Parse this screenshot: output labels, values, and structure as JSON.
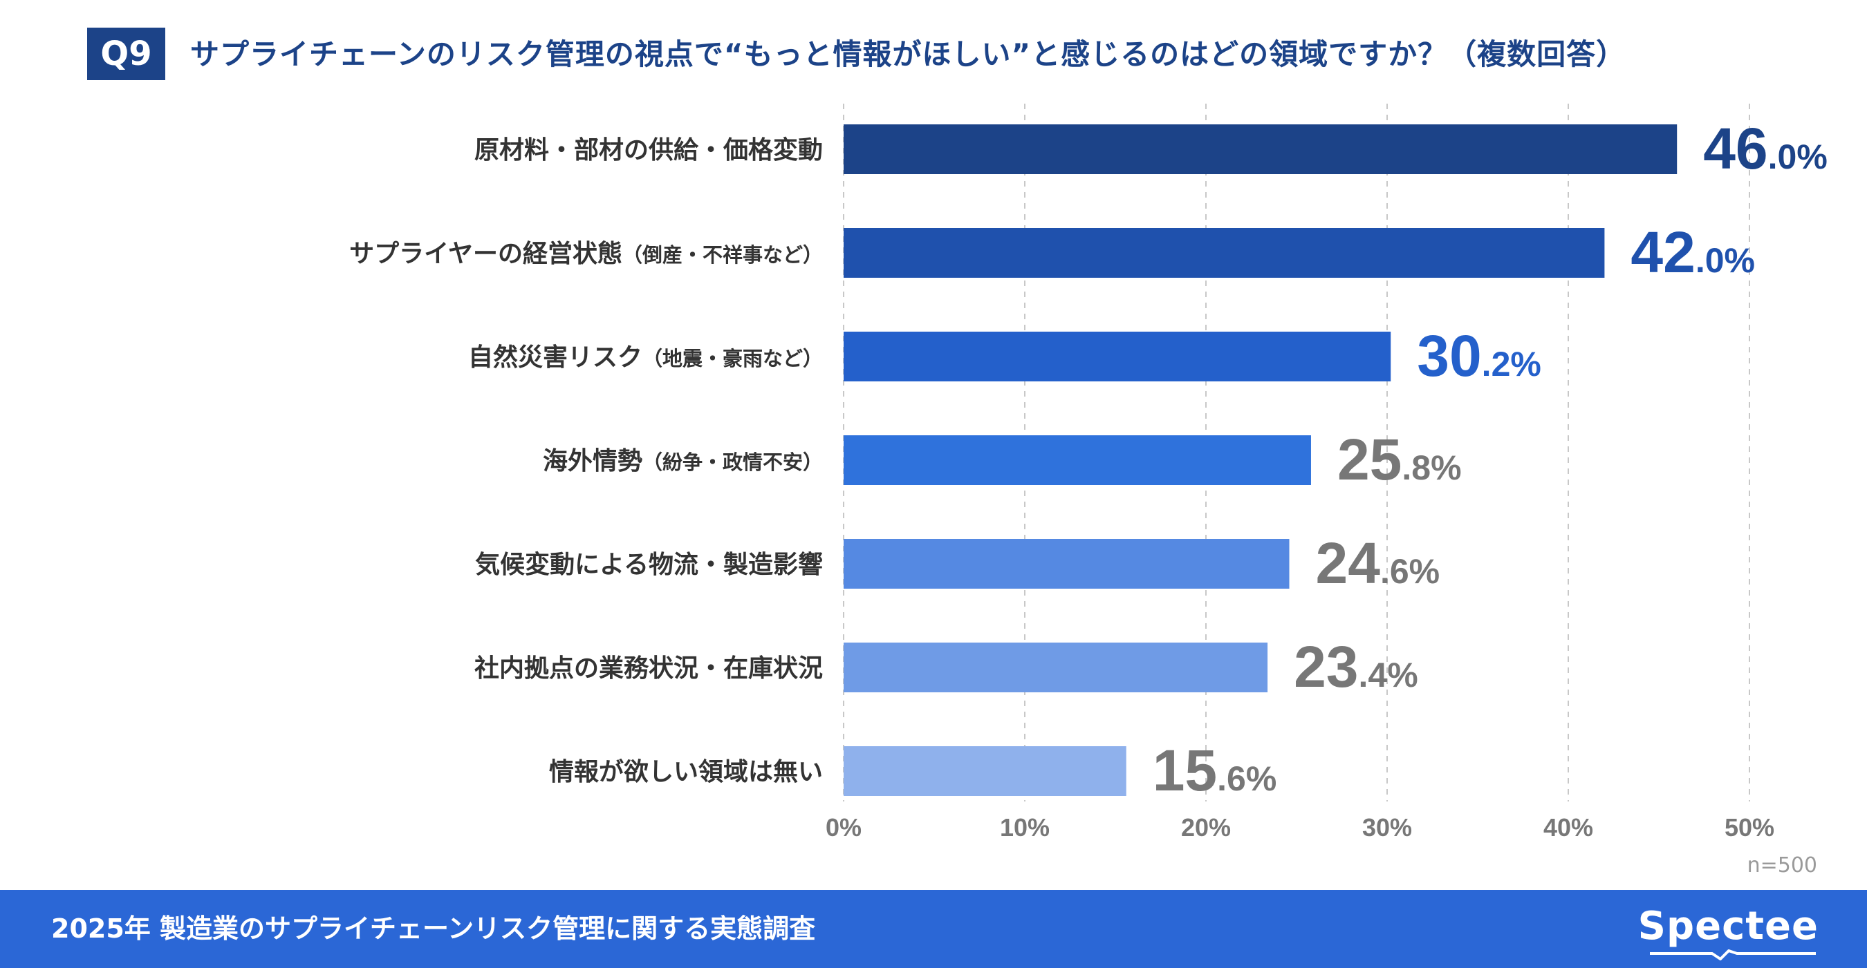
{
  "header": {
    "badge": "Q9",
    "question": "サプライチェーンのリスク管理の視点で“もっと情報がほしい”と感じるのはどの領域ですか？（複数回答）"
  },
  "chart_data": {
    "type": "bar",
    "orientation": "horizontal",
    "categories": [
      {
        "main": "原材料・部材の供給・価格変動",
        "note": ""
      },
      {
        "main": "サプライヤーの経営状態",
        "note": "（倒産・不祥事など）"
      },
      {
        "main": "自然災害リスク",
        "note": "（地震・豪雨など）"
      },
      {
        "main": "海外情勢",
        "note": "（紛争・政情不安）"
      },
      {
        "main": "気候変動による物流・製造影響",
        "note": ""
      },
      {
        "main": "社内拠点の業務状況・在庫状況",
        "note": ""
      },
      {
        "main": "情報が欲しい領域は無い",
        "note": ""
      }
    ],
    "values": [
      46.0,
      42.0,
      30.2,
      25.8,
      24.6,
      23.4,
      15.6
    ],
    "value_labels": [
      {
        "int": "46",
        "dec": ".0%"
      },
      {
        "int": "42",
        "dec": ".0%"
      },
      {
        "int": "30",
        "dec": ".2%"
      },
      {
        "int": "25",
        "dec": ".8%"
      },
      {
        "int": "24",
        "dec": ".6%"
      },
      {
        "int": "23",
        "dec": ".4%"
      },
      {
        "int": "15",
        "dec": ".6%"
      }
    ],
    "bar_colors": [
      "#1c4388",
      "#1f51ad",
      "#2460cb",
      "#2f72dc",
      "#5589e2",
      "#6f9be6",
      "#8fb1ec"
    ],
    "label_colors": [
      "#1c4388",
      "#1f51ad",
      "#2460cb",
      "#777777",
      "#777777",
      "#777777",
      "#777777"
    ],
    "xlim": [
      0,
      50
    ],
    "xticks": [
      0,
      10,
      20,
      30,
      40,
      50
    ],
    "xtick_labels": [
      "0%",
      "10%",
      "20%",
      "30%",
      "40%",
      "50%"
    ],
    "grid": true,
    "grid_style": "dashed"
  },
  "sample": "n=500",
  "footer": {
    "title": "2025年 製造業のサプライチェーンリスク管理に関する実態調査",
    "brand": "Spectee"
  }
}
